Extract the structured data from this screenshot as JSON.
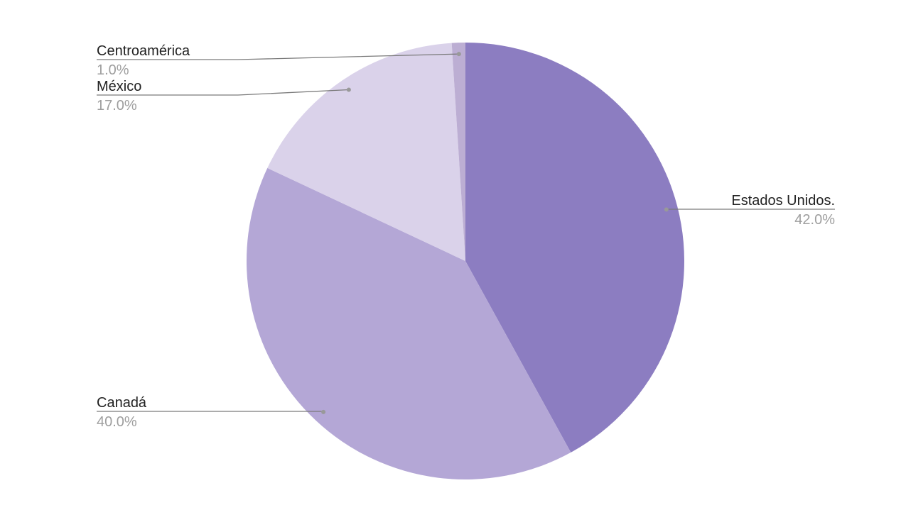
{
  "chart_data": {
    "type": "pie",
    "categories": [
      "Estados Unidos.",
      "Canadá",
      "México",
      "Centroamérica"
    ],
    "values": [
      42,
      40,
      17,
      1
    ],
    "value_labels": [
      "42.0%",
      "40.0%",
      "17.0%",
      "1.0%"
    ],
    "colors": [
      "#8c7dc1",
      "#b4a7d6",
      "#dad2ea",
      "#bcaed3"
    ]
  }
}
